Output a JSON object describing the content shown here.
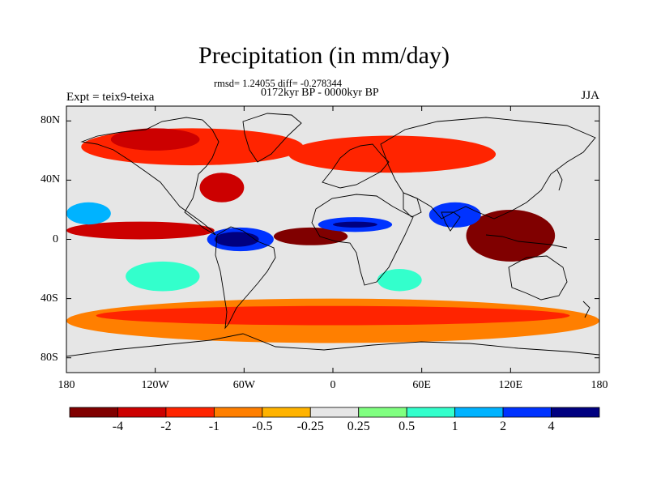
{
  "figure": {
    "title": "Precipitation (in mm/day)",
    "stats": "rmsd= 1.24055 diff= -0.278344",
    "period": "0172kyr BP - 0000kyr BP",
    "experiment": "Expt = teix9-teixa",
    "season": "JJA"
  },
  "axes": {
    "lat_labels": [
      "80N",
      "40N",
      "0",
      "40S",
      "80S"
    ],
    "lat_values": [
      80,
      40,
      0,
      -40,
      -80
    ],
    "lon_labels": [
      "180",
      "120W",
      "60W",
      "0",
      "60E",
      "120E",
      "180"
    ],
    "lon_values": [
      -180,
      -120,
      -60,
      0,
      60,
      120,
      180
    ],
    "lat_range": [
      -90,
      90
    ],
    "lon_range": [
      -180,
      180
    ]
  },
  "colorbar": {
    "labels": [
      "-4",
      "-2",
      "-1",
      "-0.5",
      "-0.25",
      "0.25",
      "0.5",
      "1",
      "2",
      "4"
    ],
    "colors": [
      "#800000",
      "#cc0000",
      "#ff2400",
      "#ff7f00",
      "#ffb300",
      "#e6e6e6",
      "#80ff80",
      "#33ffcc",
      "#00b3ff",
      "#0033ff",
      "#000080"
    ]
  },
  "chart_data": {
    "type": "heatmap",
    "variable": "Precipitation difference",
    "units": "mm/day",
    "levels": [
      -4,
      -2,
      -1,
      -0.5,
      -0.25,
      0.25,
      0.5,
      1,
      2,
      4
    ],
    "regions": [
      {
        "level": -0.5,
        "lat": [
          -40,
          -70
        ],
        "lon": [
          -180,
          180
        ]
      },
      {
        "level": -1,
        "lat": [
          -45,
          -58
        ],
        "lon": [
          -160,
          160
        ]
      },
      {
        "level": -1,
        "lat": [
          50,
          75
        ],
        "lon": [
          -170,
          -20
        ]
      },
      {
        "level": -2,
        "lat": [
          60,
          75
        ],
        "lon": [
          -150,
          -90
        ]
      },
      {
        "level": -1,
        "lat": [
          45,
          70
        ],
        "lon": [
          -30,
          110
        ]
      },
      {
        "level": -2,
        "lat": [
          0,
          12
        ],
        "lon": [
          -180,
          -80
        ]
      },
      {
        "level": -4,
        "lat": [
          -4,
          8
        ],
        "lon": [
          -40,
          10
        ]
      },
      {
        "level": -4,
        "lat": [
          -15,
          20
        ],
        "lon": [
          90,
          150
        ]
      },
      {
        "level": -2,
        "lat": [
          25,
          45
        ],
        "lon": [
          -90,
          -60
        ]
      },
      {
        "level": 2,
        "lat": [
          -8,
          8
        ],
        "lon": [
          -85,
          -40
        ]
      },
      {
        "level": 4,
        "lat": [
          -5,
          5
        ],
        "lon": [
          -80,
          -50
        ]
      },
      {
        "level": 2,
        "lat": [
          5,
          15
        ],
        "lon": [
          -10,
          40
        ]
      },
      {
        "level": 4,
        "lat": [
          8,
          12
        ],
        "lon": [
          0,
          30
        ]
      },
      {
        "level": 2,
        "lat": [
          8,
          25
        ],
        "lon": [
          65,
          100
        ]
      },
      {
        "level": 1,
        "lat": [
          10,
          25
        ],
        "lon": [
          -180,
          -150
        ]
      },
      {
        "level": 0.5,
        "lat": [
          -15,
          -35
        ],
        "lon": [
          -140,
          -90
        ]
      },
      {
        "level": 0.5,
        "lat": [
          -20,
          -35
        ],
        "lon": [
          30,
          60
        ]
      }
    ]
  }
}
